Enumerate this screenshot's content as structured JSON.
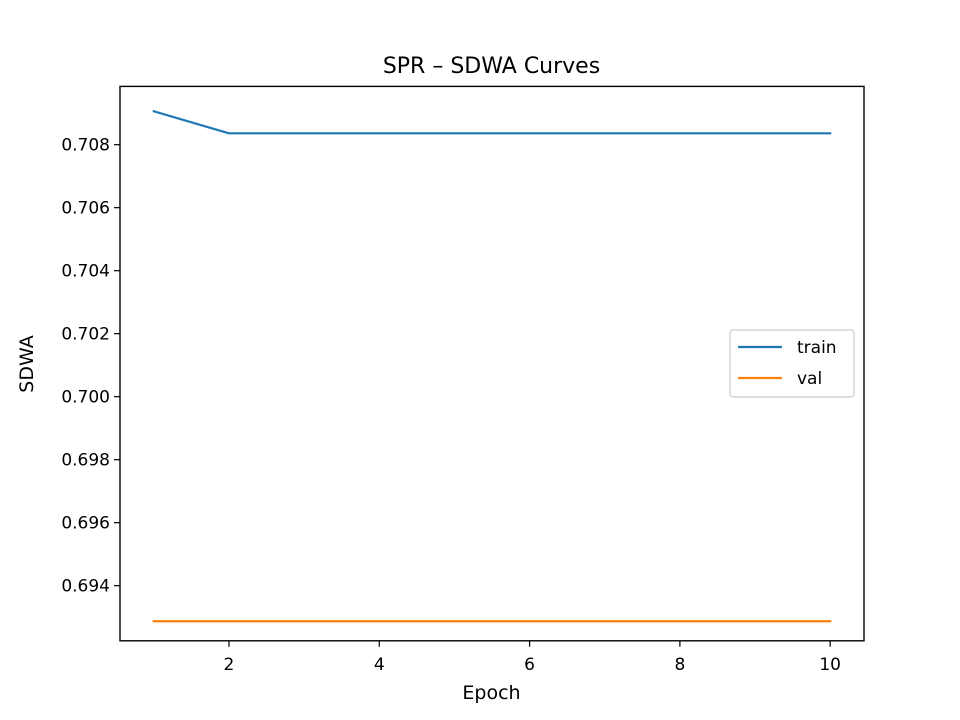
{
  "chart_data": {
    "type": "line",
    "title": "SPR – SDWA Curves",
    "xlabel": "Epoch",
    "ylabel": "SDWA",
    "x": [
      1,
      2,
      3,
      4,
      5,
      6,
      7,
      8,
      9,
      10
    ],
    "xlim": [
      0.55,
      10.45
    ],
    "ylim": [
      0.69225,
      0.70985
    ],
    "xticks": [
      2,
      4,
      6,
      8,
      10
    ],
    "yticks": [
      0.694,
      0.696,
      0.698,
      0.7,
      0.702,
      0.704,
      0.706,
      0.708
    ],
    "ytick_decimals": 3,
    "grid": false,
    "legend_position": "center right",
    "series": [
      {
        "name": "train",
        "color": "#1f77b4",
        "values": [
          0.70906,
          0.70836,
          0.70836,
          0.70836,
          0.70836,
          0.70836,
          0.70836,
          0.70836,
          0.70836,
          0.70836
        ]
      },
      {
        "name": "val",
        "color": "#ff7f0e",
        "values": [
          0.69287,
          0.69287,
          0.69287,
          0.69287,
          0.69287,
          0.69287,
          0.69287,
          0.69287,
          0.69287,
          0.69287
        ]
      }
    ]
  }
}
